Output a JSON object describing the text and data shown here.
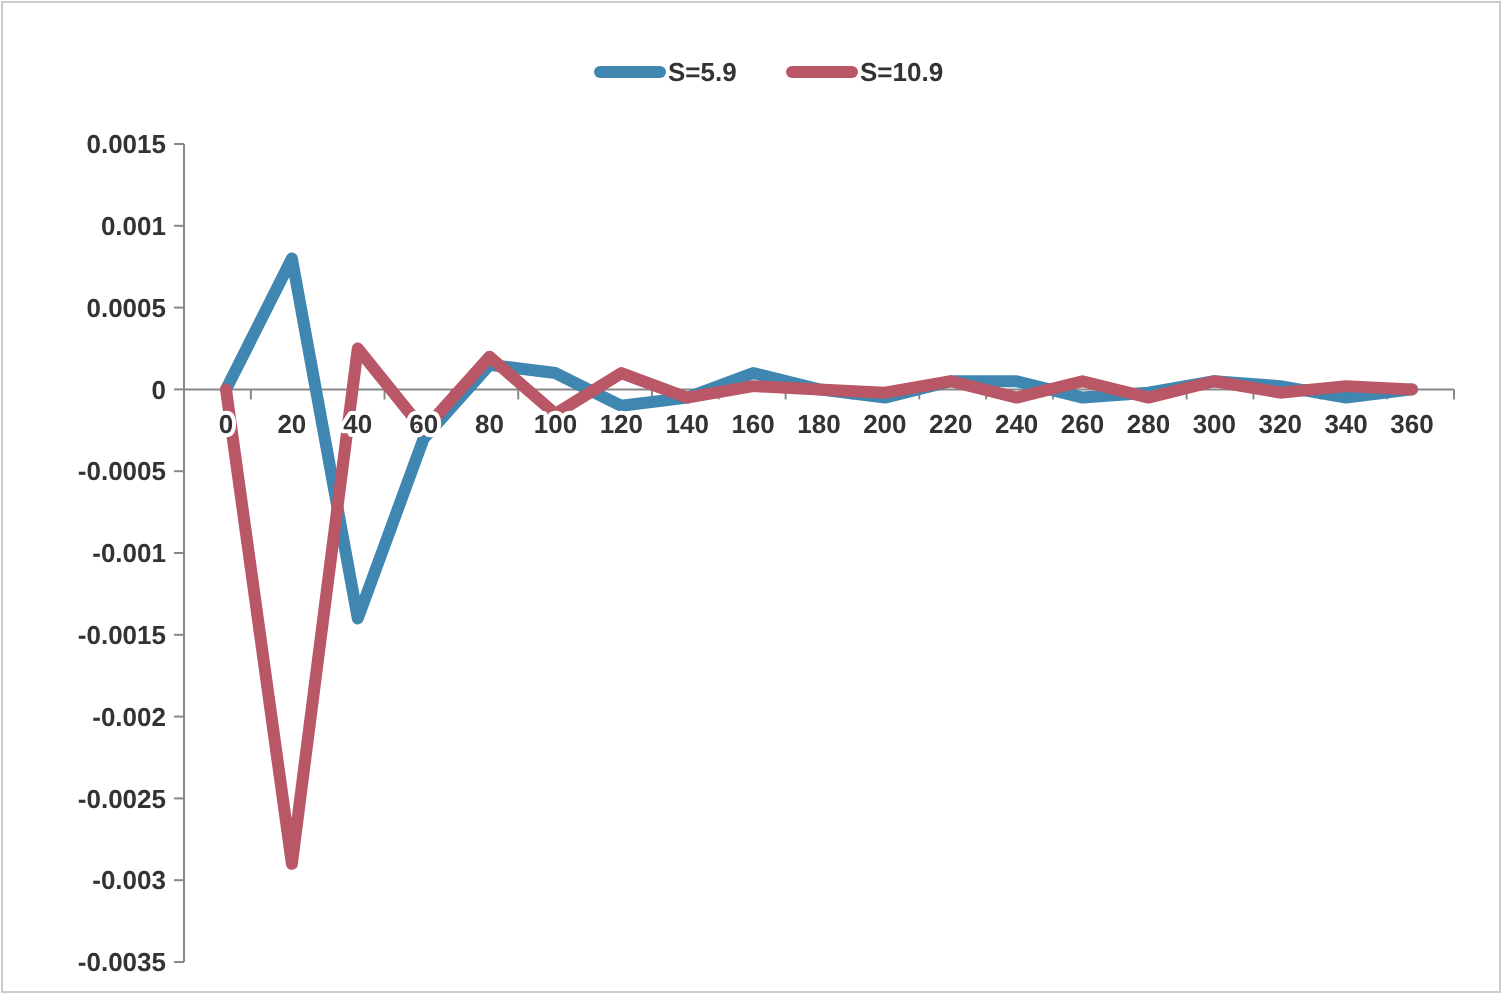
{
  "chart_data": {
    "type": "line",
    "categories": [
      "0",
      "20",
      "40",
      "60",
      "80",
      "100",
      "120",
      "140",
      "160",
      "180",
      "200",
      "220",
      "240",
      "260",
      "280",
      "300",
      "320",
      "340",
      "360"
    ],
    "series": [
      {
        "name": "S=5.9",
        "color": "#3f86b0",
        "values": [
          0,
          0.0008,
          -0.0014,
          -0.0003,
          0.00015,
          0.0001,
          -0.0001,
          -5e-05,
          0.0001,
          0,
          -5e-05,
          5e-05,
          5e-05,
          -5e-05,
          -2e-05,
          5e-05,
          2e-05,
          -5e-05,
          0
        ]
      },
      {
        "name": "S=10.9",
        "color": "#b95766",
        "values": [
          0,
          -0.0029,
          0.00025,
          -0.00025,
          0.0002,
          -0.00015,
          0.0001,
          -5e-05,
          2e-05,
          0,
          -2e-05,
          5e-05,
          -5e-05,
          5e-05,
          -5e-05,
          5e-05,
          -2e-05,
          2e-05,
          0
        ]
      }
    ],
    "ylim": [
      -0.0035,
      0.0015
    ],
    "yticks": [
      -0.0035,
      -0.003,
      -0.0025,
      -0.002,
      -0.0015,
      -0.001,
      -0.0005,
      0,
      0.0005,
      0.001,
      0.0015
    ],
    "grid": false,
    "legend": "top",
    "marker": "none",
    "line_style": "solid"
  }
}
